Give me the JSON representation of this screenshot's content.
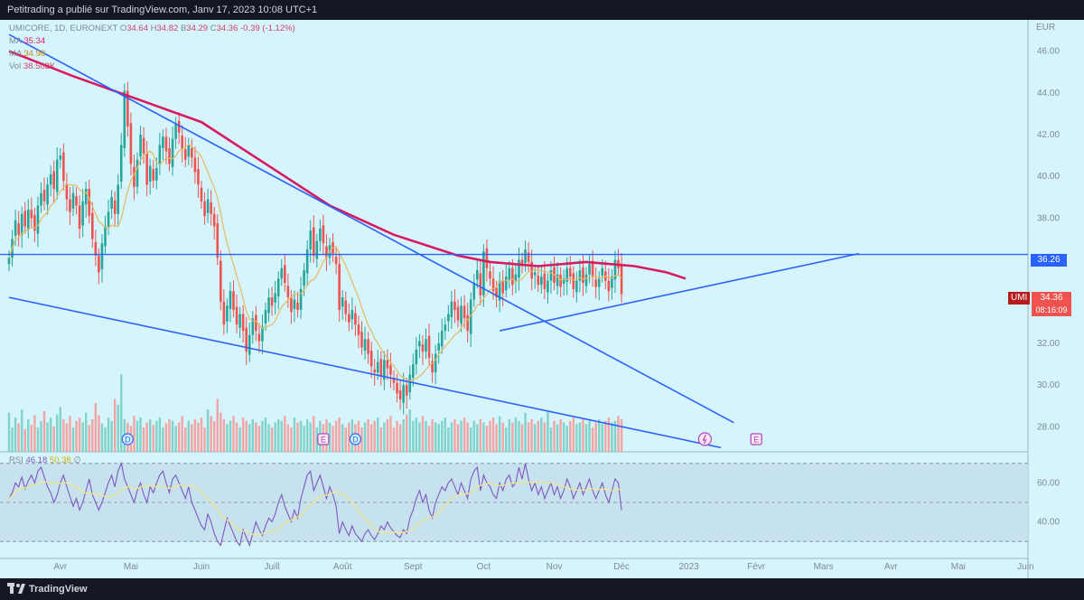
{
  "header": {
    "publisher_text": "Petitrading a publié sur TradingView.com, Janv 17, 2023 10:08 UTC+1"
  },
  "footer": {
    "brand": "TradingView"
  },
  "legend": {
    "symbol": "UMICORE, 1D, EURONEXT",
    "open_label": "O",
    "open": "34.64",
    "high_label": "H",
    "high": "34.82",
    "low_label": "B",
    "low": "34.29",
    "close_label": "C",
    "close": "34.36",
    "change": "-0.39 (-1.12%)",
    "ma1_label": "MA",
    "ma1_value": "35.34",
    "ma2_label": "MA",
    "ma2_value": "34.98",
    "vol_label": "Vol",
    "vol_value": "38.502K",
    "rsi_label": "RSI",
    "rsi_value": "46.18",
    "rsi_ma_value": "50.38",
    "rsi_extra": "∅"
  },
  "price_tag": {
    "symbol": "UMI",
    "price": "34.36",
    "countdown": "08:16:09"
  },
  "level_tag": "36.26",
  "currency": "EUR",
  "colors": {
    "bg": "#d6f4fb",
    "up": "#26a69a",
    "down": "#ef5350",
    "ma_long": "#d81b60",
    "ma_short": "#e8b960",
    "trend": "#2962ff",
    "rsi": "#7e57c2",
    "rsi_ma": "#f0e68c"
  },
  "chart_data": {
    "type": "candlestick",
    "ylim": [
      26.8,
      47.5
    ],
    "y_ticks": [
      "46.00",
      "44.00",
      "42.00",
      "40.00",
      "38.00",
      "36.00",
      "34.00",
      "32.00",
      "30.00",
      "28.00"
    ],
    "months": [
      {
        "label": "Avr",
        "i": 16
      },
      {
        "label": "Mai",
        "i": 38
      },
      {
        "label": "Juin",
        "i": 60
      },
      {
        "label": "Juill",
        "i": 82
      },
      {
        "label": "Août",
        "i": 104
      },
      {
        "label": "Sept",
        "i": 126
      },
      {
        "label": "Oct",
        "i": 148
      },
      {
        "label": "Nov",
        "i": 170
      },
      {
        "label": "Déc",
        "i": 191
      },
      {
        "label": "2023",
        "i": 212
      },
      {
        "label": "Févr",
        "i": 233
      },
      {
        "label": "Mars",
        "i": 254
      },
      {
        "label": "Avr",
        "i": 275
      },
      {
        "label": "Mai",
        "i": 296
      },
      {
        "label": "Juin",
        "i": 317
      }
    ],
    "closes": [
      36.1,
      37.0,
      37.9,
      37.2,
      38.2,
      37.6,
      38.4,
      38.0,
      37.4,
      38.6,
      39.2,
      38.8,
      39.6,
      40.1,
      39.4,
      40.8,
      41.0,
      39.8,
      38.9,
      38.3,
      39.2,
      38.6,
      37.5,
      38.8,
      39.4,
      38.1,
      37.0,
      36.2,
      35.4,
      36.8,
      37.6,
      38.3,
      39.0,
      38.2,
      39.6,
      41.5,
      44.1,
      42.4,
      40.6,
      39.5,
      40.8,
      42.0,
      41.1,
      39.6,
      40.5,
      39.8,
      40.4,
      41.5,
      41.9,
      41.2,
      40.6,
      41.8,
      42.5,
      42.1,
      41.3,
      40.8,
      41.5,
      40.9,
      40.2,
      39.6,
      38.8,
      38.1,
      38.9,
      38.2,
      37.6,
      36.1,
      34.0,
      32.9,
      33.8,
      34.5,
      33.6,
      32.9,
      33.4,
      32.6,
      31.6,
      32.4,
      33.2,
      32.6,
      32.1,
      32.8,
      33.6,
      34.2,
      33.8,
      34.4,
      35.1,
      35.6,
      34.9,
      34.2,
      33.5,
      34.1,
      33.6,
      34.6,
      35.5,
      36.5,
      37.4,
      36.2,
      36.9,
      37.5,
      36.8,
      36.1,
      36.7,
      36.3,
      35.8,
      33.6,
      34.2,
      33.4,
      33.0,
      33.6,
      32.9,
      32.4,
      31.8,
      32.2,
      31.5,
      30.9,
      30.6,
      31.1,
      30.4,
      31.2,
      30.8,
      30.5,
      30.1,
      29.6,
      29.3,
      30.0,
      29.5,
      30.5,
      31.0,
      31.7,
      32.1,
      31.6,
      32.2,
      31.3,
      30.6,
      31.5,
      32.0,
      32.6,
      32.9,
      33.4,
      34.0,
      33.6,
      33.1,
      33.8,
      33.2,
      32.6,
      34.1,
      34.9,
      35.5,
      34.3,
      36.4,
      35.6,
      35.1,
      34.5,
      34.2,
      35.0,
      34.4,
      35.2,
      35.6,
      34.8,
      35.3,
      36.0,
      35.7,
      36.5,
      35.9,
      35.1,
      35.4,
      34.8,
      35.2,
      34.6,
      35.0,
      35.5,
      34.9,
      35.3,
      34.7,
      35.1,
      35.6,
      35.2,
      34.6,
      35.0,
      35.5,
      34.9,
      35.3,
      35.8,
      35.2,
      34.7,
      35.1,
      35.6,
      35.0,
      34.5,
      35.2,
      36.0,
      35.6,
      34.36
    ],
    "volumes": [
      48,
      30,
      42,
      35,
      52,
      28,
      40,
      33,
      45,
      30,
      38,
      50,
      36,
      42,
      31,
      46,
      55,
      40,
      35,
      44,
      30,
      38,
      42,
      36,
      48,
      33,
      40,
      60,
      45,
      35,
      30,
      42,
      38,
      65,
      58,
      95,
      40,
      36,
      32,
      44,
      38,
      42,
      30,
      36,
      40,
      33,
      38,
      42,
      30,
      35,
      40,
      38,
      32,
      36,
      44,
      30,
      38,
      34,
      40,
      36,
      42,
      30,
      52,
      44,
      38,
      65,
      48,
      40,
      34,
      38,
      44,
      36,
      30,
      42,
      38,
      34,
      40,
      36,
      32,
      38,
      42,
      34,
      30,
      36,
      40,
      38,
      44,
      34,
      30,
      42,
      36,
      38,
      32,
      40,
      36,
      44,
      30,
      38,
      34,
      40,
      36,
      32,
      38,
      42,
      34,
      30,
      36,
      40,
      34,
      38,
      30,
      36,
      40,
      34,
      38,
      42,
      30,
      36,
      40,
      44,
      30,
      38,
      34,
      40,
      46,
      52,
      38,
      42,
      36,
      44,
      38,
      32,
      40,
      36,
      34,
      38,
      42,
      30,
      36,
      40,
      34,
      38,
      42,
      36,
      30,
      38,
      34,
      40,
      36,
      32,
      38,
      42,
      34,
      44,
      36,
      30,
      40,
      36,
      42,
      38,
      34,
      48,
      36,
      40,
      34,
      38,
      42,
      36,
      50,
      30,
      38,
      34,
      40,
      36,
      32,
      38,
      42,
      34,
      36,
      40,
      34,
      38,
      30,
      36,
      40,
      34,
      38,
      42,
      36,
      38,
      44,
      40
    ],
    "ma_long": [
      [
        0,
        46.0
      ],
      [
        20,
        44.8
      ],
      [
        40,
        43.7
      ],
      [
        60,
        42.6
      ],
      [
        80,
        40.6
      ],
      [
        100,
        38.6
      ],
      [
        120,
        37.2
      ],
      [
        140,
        36.2
      ],
      [
        150,
        35.9
      ],
      [
        165,
        35.7
      ],
      [
        180,
        35.9
      ],
      [
        195,
        35.7
      ],
      [
        205,
        35.4
      ],
      [
        211,
        35.1
      ]
    ],
    "levels": [
      {
        "price": 36.26,
        "label": "36.26"
      }
    ],
    "trendlines": [
      {
        "from": [
          0,
          46.8
        ],
        "to": [
          226,
          28.2
        ]
      },
      {
        "from": [
          0,
          34.2
        ],
        "to": [
          222,
          27.0
        ]
      },
      {
        "from": [
          153,
          32.6
        ],
        "to": [
          265,
          36.3
        ]
      }
    ],
    "events": [
      {
        "i": 37,
        "label": "D"
      },
      {
        "i": 98,
        "label": "E"
      },
      {
        "i": 108,
        "label": "D"
      },
      {
        "i": 233,
        "label": "E"
      }
    ],
    "rsi": {
      "ylim": [
        25,
        75
      ],
      "ticks": [
        "60.00",
        "40.00"
      ],
      "bands": [
        70,
        50,
        30
      ],
      "values": [
        52,
        55,
        60,
        58,
        63,
        57,
        61,
        64,
        60,
        66,
        68,
        63,
        58,
        55,
        50,
        54,
        60,
        64,
        58,
        53,
        48,
        52,
        46,
        50,
        56,
        62,
        54,
        50,
        46,
        50,
        55,
        60,
        64,
        58,
        66,
        70,
        62,
        58,
        54,
        50,
        56,
        60,
        54,
        50,
        58,
        55,
        60,
        64,
        66,
        60,
        55,
        62,
        64,
        60,
        56,
        52,
        58,
        50,
        46,
        42,
        38,
        36,
        44,
        40,
        34,
        30,
        28,
        35,
        42,
        38,
        34,
        30,
        28,
        36,
        32,
        28,
        34,
        40,
        36,
        33,
        38,
        42,
        40,
        44,
        50,
        54,
        48,
        44,
        40,
        46,
        42,
        52,
        58,
        64,
        66,
        56,
        60,
        64,
        58,
        52,
        58,
        54,
        48,
        34,
        40,
        36,
        33,
        38,
        34,
        32,
        30,
        34,
        36,
        33,
        31,
        34,
        38,
        36,
        40,
        37,
        35,
        33,
        32,
        36,
        34,
        42,
        46,
        52,
        56,
        50,
        54,
        46,
        42,
        50,
        54,
        58,
        56,
        60,
        62,
        58,
        54,
        60,
        56,
        52,
        62,
        66,
        68,
        56,
        64,
        60,
        58,
        54,
        52,
        60,
        56,
        62,
        64,
        58,
        60,
        68,
        62,
        70,
        62,
        56,
        60,
        54,
        58,
        52,
        56,
        60,
        54,
        58,
        52,
        56,
        62,
        58,
        52,
        56,
        60,
        54,
        58,
        62,
        56,
        52,
        56,
        60,
        54,
        50,
        56,
        62,
        60,
        46
      ]
    }
  }
}
